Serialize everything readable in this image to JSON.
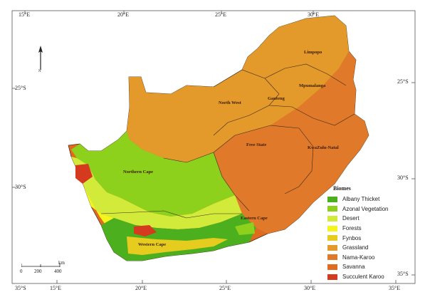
{
  "top_ticks": [
    "15°E",
    "20°E",
    "25°E",
    "30°E"
  ],
  "bottom_ticks": [
    "35°S",
    "15°E",
    "20°E",
    "25°E",
    "30°E",
    "35°E"
  ],
  "lat_left": [
    "25°S",
    "30°S"
  ],
  "lat_right": [
    "25°S",
    "30°S",
    "35°S"
  ],
  "provinces": {
    "limpopo": "Limpopo",
    "mpumalanga": "Mpumalanga",
    "north_west": "North West",
    "gauteng": "Gauteng",
    "free_state": "Free State",
    "kwazulu_natal": "KwaZulu-Natal",
    "northern_cape": "Northern Cape",
    "eastern_cape": "Eastern Cape",
    "western_cape": "Western Cape"
  },
  "legend": {
    "title": "Biomes",
    "items": [
      {
        "label": "Albany Thicket",
        "color": "#4caf1e"
      },
      {
        "label": "Azonal Vegetation",
        "color": "#8ed11c"
      },
      {
        "label": "Desert",
        "color": "#d2ea3a"
      },
      {
        "label": "Forests",
        "color": "#f5f51c"
      },
      {
        "label": "Fynbos",
        "color": "#e6cc1e"
      },
      {
        "label": "Grassland",
        "color": "#e39a2a"
      },
      {
        "label": "Nama-Karoo",
        "color": "#e07a2a"
      },
      {
        "label": "Savanna",
        "color": "#e06a1e"
      },
      {
        "label": "Succulent Karoo",
        "color": "#d63a1e"
      }
    ]
  },
  "scale": {
    "unit": "km",
    "labels": [
      "0",
      "200",
      "400"
    ]
  },
  "north": {
    "letter": "N"
  }
}
